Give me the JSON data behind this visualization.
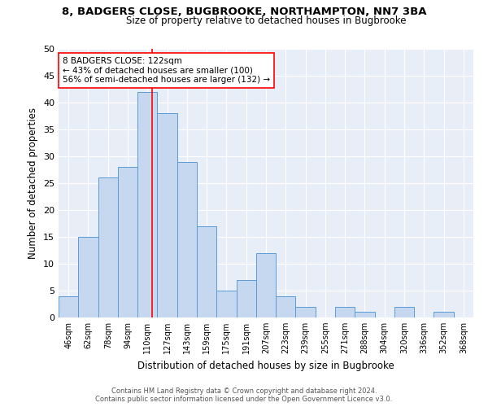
{
  "title1": "8, BADGERS CLOSE, BUGBROOKE, NORTHAMPTON, NN7 3BA",
  "title2": "Size of property relative to detached houses in Bugbrooke",
  "xlabel": "Distribution of detached houses by size in Bugbrooke",
  "ylabel": "Number of detached properties",
  "bar_labels": [
    "46sqm",
    "62sqm",
    "78sqm",
    "94sqm",
    "110sqm",
    "127sqm",
    "143sqm",
    "159sqm",
    "175sqm",
    "191sqm",
    "207sqm",
    "223sqm",
    "239sqm",
    "255sqm",
    "271sqm",
    "288sqm",
    "304sqm",
    "320sqm",
    "336sqm",
    "352sqm",
    "368sqm"
  ],
  "bar_values": [
    4,
    15,
    26,
    28,
    42,
    38,
    29,
    17,
    5,
    7,
    12,
    4,
    2,
    0,
    2,
    1,
    0,
    2,
    0,
    1,
    0
  ],
  "bar_color": "#c5d8f0",
  "bar_edge_color": "#5b9bd5",
  "annotation_title": "8 BADGERS CLOSE: 122sqm",
  "annotation_line1": "← 43% of detached houses are smaller (100)",
  "annotation_line2": "56% of semi-detached houses are larger (132) →",
  "red_line_x": 4.72,
  "ylim": [
    0,
    50
  ],
  "yticks": [
    0,
    5,
    10,
    15,
    20,
    25,
    30,
    35,
    40,
    45,
    50
  ],
  "bg_color": "#e8eef8",
  "footer1": "Contains HM Land Registry data © Crown copyright and database right 2024.",
  "footer2": "Contains public sector information licensed under the Open Government Licence v3.0."
}
